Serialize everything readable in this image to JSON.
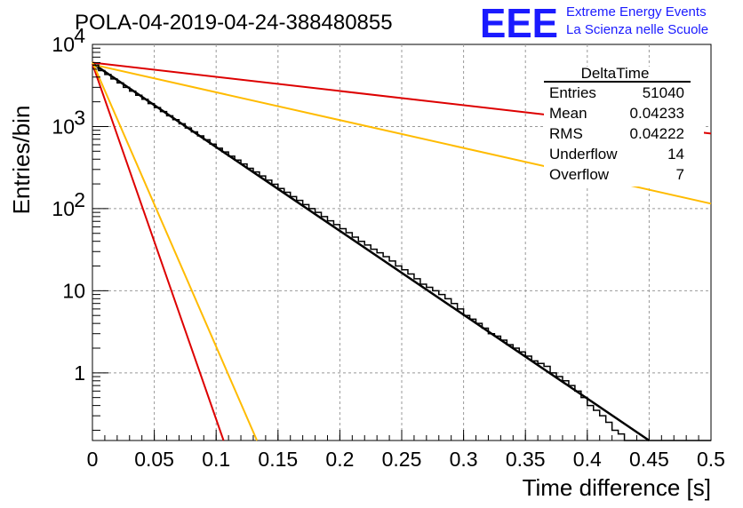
{
  "header": {
    "title": "POLA-04-2019-04-24-388480855",
    "logo_letters": "EEE",
    "logo_line1": "Extreme Energy Events",
    "logo_line2": "La Scienza nelle Scuole",
    "logo_color": "#1a1aff"
  },
  "stats_box": {
    "name": "DeltaTime",
    "rows": [
      {
        "label": "Entries",
        "value": "51040"
      },
      {
        "label": "Mean",
        "value": "0.04233"
      },
      {
        "label": "RMS",
        "value": "0.04222"
      },
      {
        "label": "Underflow",
        "value": "14"
      },
      {
        "label": "Overflow",
        "value": "7"
      }
    ]
  },
  "chart_data": {
    "type": "line",
    "title": "POLA-04-2019-04-24-388480855",
    "xlabel": "Time difference [s]",
    "ylabel": "Entries/bin",
    "xlim": [
      0,
      0.5
    ],
    "ylim": [
      0.15,
      10000
    ],
    "yscale": "log",
    "grid": true,
    "x_ticks": [
      "0",
      "0.05",
      "0.1",
      "0.15",
      "0.2",
      "0.25",
      "0.3",
      "0.35",
      "0.4",
      "0.45",
      "0.5"
    ],
    "y_ticks": [
      {
        "value": 1,
        "label": "1"
      },
      {
        "value": 10,
        "label": "10"
      },
      {
        "value": 100,
        "label": "10",
        "exp": "2"
      },
      {
        "value": 1000,
        "label": "10",
        "exp": "3"
      },
      {
        "value": 10000,
        "label": "10",
        "exp": "4"
      }
    ],
    "histogram": {
      "bin_width": 0.005,
      "color": "#000000",
      "counts": [
        5600,
        4800,
        4300,
        3800,
        3400,
        3000,
        2700,
        2400,
        2150,
        1900,
        1700,
        1520,
        1350,
        1210,
        1080,
        960,
        860,
        770,
        690,
        610,
        545,
        490,
        435,
        390,
        350,
        310,
        280,
        250,
        222,
        198,
        176,
        158,
        140,
        126,
        112,
        100,
        90,
        80,
        71,
        64,
        57,
        51,
        45,
        40,
        36,
        32,
        29,
        26,
        23,
        20,
        18,
        16,
        14,
        12,
        11,
        10,
        9,
        8,
        7,
        6,
        5,
        4.5,
        4,
        3.5,
        3,
        2.8,
        2.5,
        2.2,
        2,
        1.8,
        1.6,
        1.4,
        1.3,
        1.2,
        1.0,
        0.9,
        0.8,
        0.7,
        0.6,
        0.5,
        0.4,
        0.35,
        0.3,
        0.25,
        0.2,
        0.18,
        0.15,
        0.13,
        0.1,
        0.1,
        0.1,
        0.1,
        0.1,
        0.1,
        0.1,
        0.1,
        0.1,
        0.1,
        0.1,
        0.1
      ],
      "note_counts": []
    },
    "series": [
      {
        "color": "#000000",
        "x": [
          0,
          0.45
        ],
        "y": [
          5900,
          0.15
        ],
        "width": 2.5
      },
      {
        "color": "#dd0000",
        "x": [
          0,
          0.5
        ],
        "y": [
          6000,
          820
        ],
        "width": 2
      },
      {
        "color": "#ffbb00",
        "x": [
          0,
          0.5
        ],
        "y": [
          5700,
          115
        ],
        "width": 2
      },
      {
        "color": "#dd0000",
        "x": [
          0,
          0.106
        ],
        "y": [
          5800,
          0.15
        ],
        "width": 2
      },
      {
        "color": "#ffbb00",
        "x": [
          0,
          0.133
        ],
        "y": [
          6100,
          0.15
        ],
        "width": 2
      }
    ]
  }
}
